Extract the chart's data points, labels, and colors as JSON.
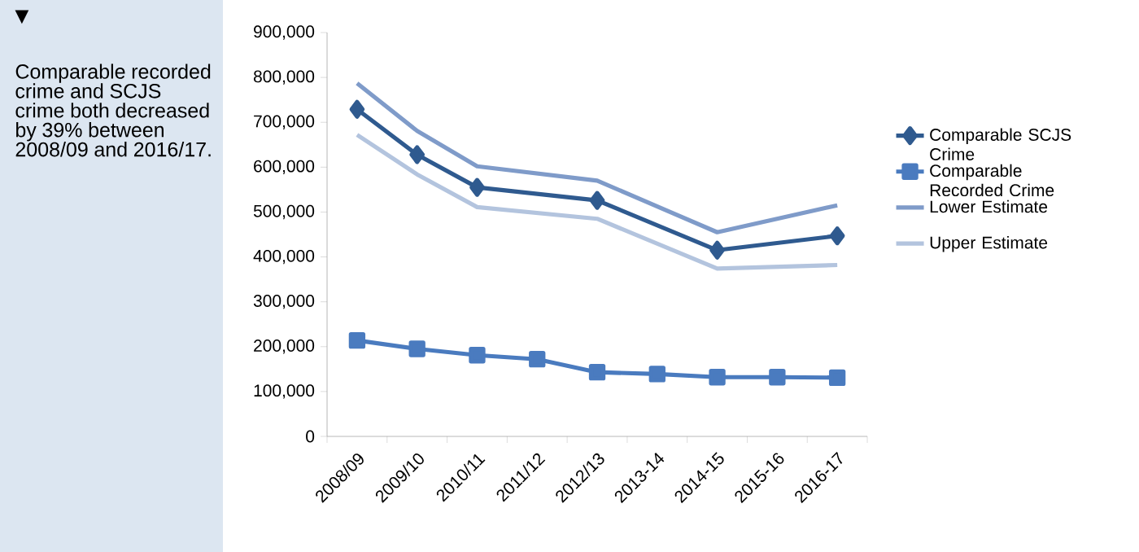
{
  "chart_data": {
    "type": "line",
    "categories": [
      "2008/09",
      "2009/10",
      "2010/11",
      "2011/12",
      "2012/13",
      "2013-14",
      "2014-15",
      "2015-16",
      "2016-17"
    ],
    "series": [
      {
        "name": "Comparable SCJS Crime",
        "color": "#2f5a8f",
        "marker": "diamond",
        "values": [
          729000,
          628000,
          555000,
          null,
          526000,
          null,
          415000,
          null,
          447000
        ]
      },
      {
        "name": "Comparable Recorded Crime",
        "color": "#4a7bbf",
        "marker": "square",
        "values": [
          214000,
          195000,
          181000,
          172000,
          143000,
          139000,
          132000,
          132000,
          131000
        ]
      },
      {
        "name": "Lower Estimate",
        "color": "#7f9bc9",
        "marker": "none",
        "values": [
          787000,
          681000,
          602000,
          null,
          570000,
          null,
          455000,
          null,
          515000
        ]
      },
      {
        "name": "Upper Estimate",
        "color": "#b3c4de",
        "marker": "none",
        "values": [
          672000,
          584000,
          511000,
          null,
          485000,
          null,
          374000,
          null,
          382000
        ]
      }
    ],
    "ylim": [
      0,
      900000
    ],
    "yticks": [
      {
        "value": 0,
        "label": "0"
      },
      {
        "value": 100000,
        "label": "100,000"
      },
      {
        "value": 200000,
        "label": "200,000"
      },
      {
        "value": 300000,
        "label": "300,000"
      },
      {
        "value": 400000,
        "label": "400,000"
      },
      {
        "value": 500000,
        "label": "500,000"
      },
      {
        "value": 600000,
        "label": "600,000"
      },
      {
        "value": 700000,
        "label": "700,000"
      },
      {
        "value": 800000,
        "label": "800,000"
      },
      {
        "value": 900000,
        "label": "900,000"
      }
    ],
    "legend": "right",
    "grid": false,
    "line_style": "solid",
    "annotations": [
      "▼",
      "Comparable recorded crime and SCJS crime both decreased by 39% between 2008/09 and 2016/17."
    ]
  }
}
